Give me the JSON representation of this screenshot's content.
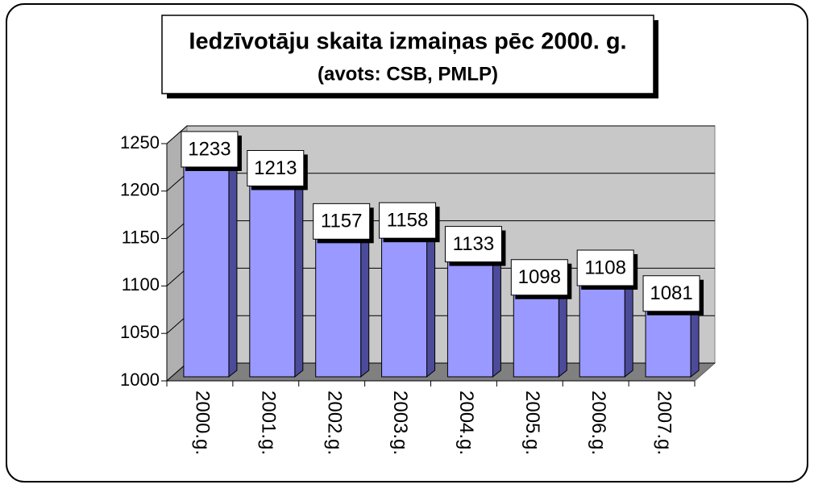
{
  "chart_data": {
    "type": "bar",
    "title": "Iedzīvotāju skaita izmaiņas pēc 2000. g.",
    "subtitle": "(avots: CSB, PMLP)",
    "categories": [
      "2000.g.",
      "2001.g.",
      "2002.g.",
      "2003.g.",
      "2004.g.",
      "2005.g.",
      "2006.g.",
      "2007.g."
    ],
    "values": [
      1233,
      1213,
      1157,
      1158,
      1133,
      1098,
      1108,
      1081
    ],
    "color": "#9999ff",
    "ylim": [
      1000,
      1250
    ],
    "yticks": [
      1000,
      1050,
      1100,
      1150,
      1200,
      1250
    ],
    "grid": true
  }
}
